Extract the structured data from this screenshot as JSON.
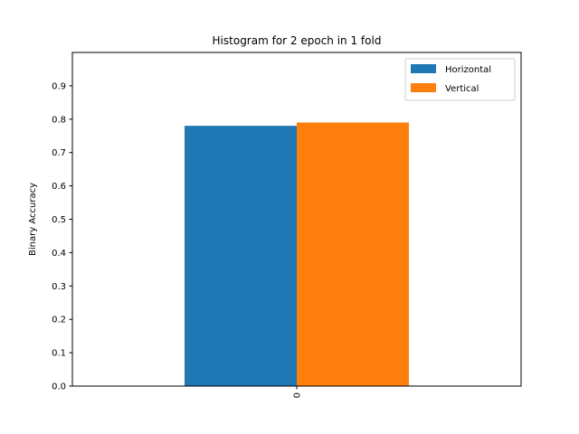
{
  "chart_data": {
    "type": "bar",
    "title": "Histogram for 2 epoch in 1 fold",
    "xlabel": "",
    "ylabel": "Binary Accuracy",
    "categories": [
      "0"
    ],
    "series": [
      {
        "name": "Horizontal",
        "values": [
          0.78
        ],
        "color": "#1f77b4"
      },
      {
        "name": "Vertical",
        "values": [
          0.79
        ],
        "color": "#ff7f0e"
      }
    ],
    "ylim": [
      0,
      1.0
    ],
    "yticks": [
      "0.0",
      "0.1",
      "0.2",
      "0.3",
      "0.4",
      "0.5",
      "0.6",
      "0.7",
      "0.8",
      "0.9"
    ],
    "x_tick_rotation": 90,
    "grid": false,
    "legend_position": "top-right"
  }
}
